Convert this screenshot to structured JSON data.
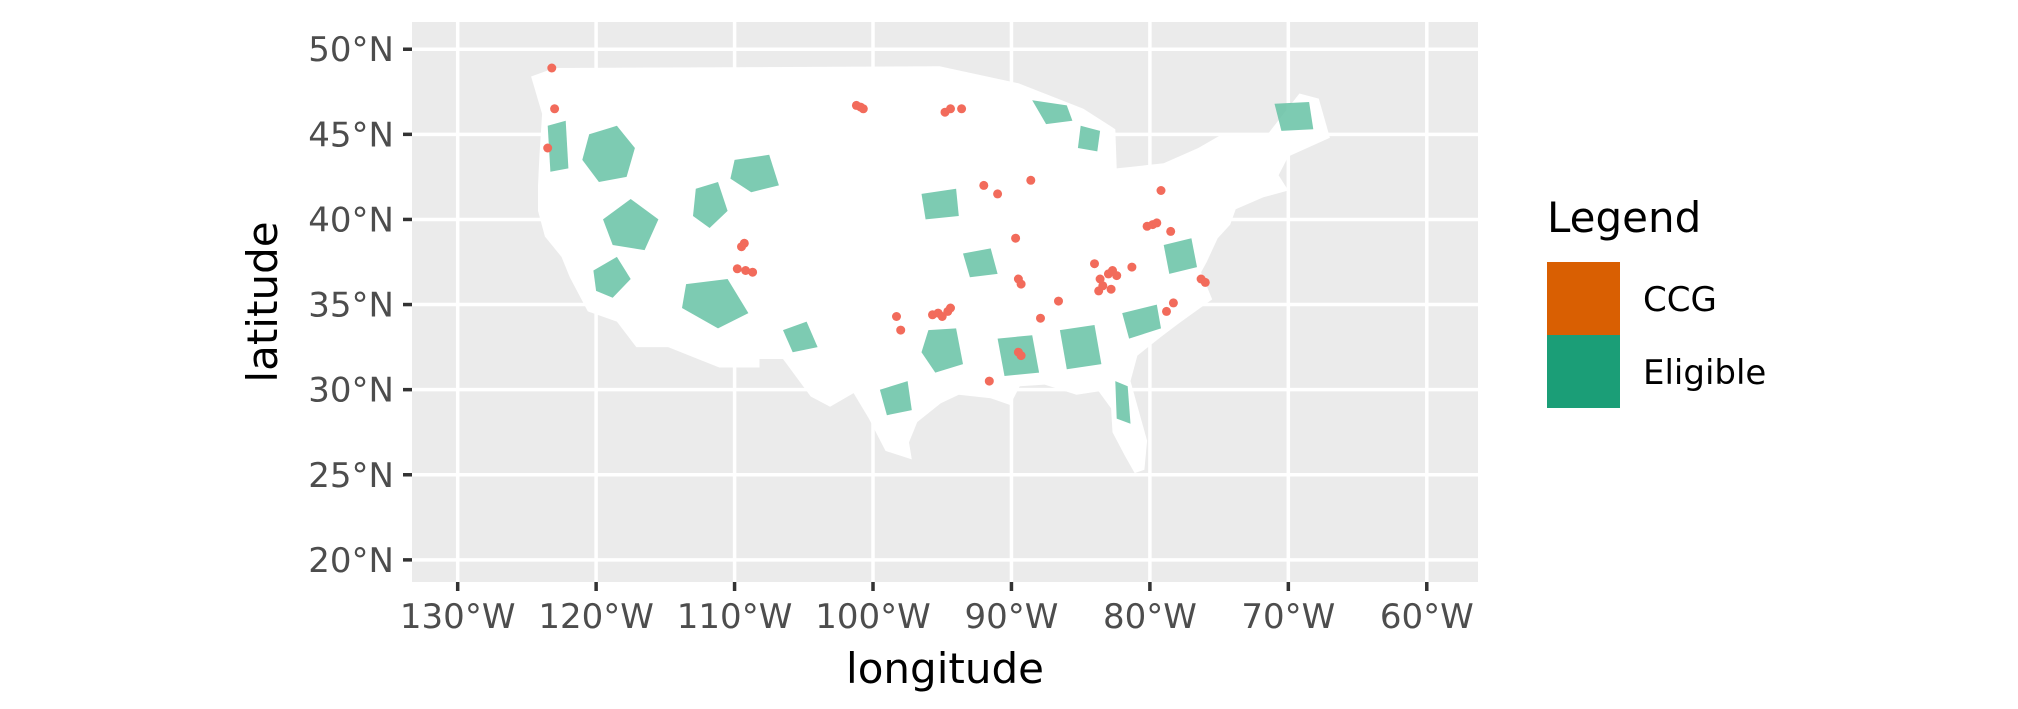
{
  "axes": {
    "x_title": "longitude",
    "y_title": "latitude",
    "x_ticks": [
      {
        "value": -130,
        "label": "130°W"
      },
      {
        "value": -120,
        "label": "120°W"
      },
      {
        "value": -110,
        "label": "110°W"
      },
      {
        "value": -100,
        "label": "100°W"
      },
      {
        "value": -90,
        "label": "90°W"
      },
      {
        "value": -80,
        "label": "80°W"
      },
      {
        "value": -70,
        "label": "70°W"
      },
      {
        "value": -60,
        "label": "60°W"
      }
    ],
    "y_ticks": [
      {
        "value": 20,
        "label": "20°N"
      },
      {
        "value": 25,
        "label": "25°N"
      },
      {
        "value": 30,
        "label": "30°N"
      },
      {
        "value": 35,
        "label": "35°N"
      },
      {
        "value": 40,
        "label": "40°N"
      },
      {
        "value": 45,
        "label": "45°N"
      },
      {
        "value": 50,
        "label": "50°N"
      }
    ],
    "xlim": [
      -133.3,
      -56.3
    ],
    "ylim": [
      18.7,
      51.6
    ],
    "grid": true
  },
  "legend": {
    "title": "Legend",
    "placement": "right",
    "items": [
      {
        "label": "CCG",
        "color": "#d95f02"
      },
      {
        "label": "Eligible",
        "color": "#1b9e77"
      }
    ]
  },
  "colors": {
    "panel_background": "#ebebeb",
    "grid": "#ffffff",
    "land": "#ffffff",
    "eligible_fill": "#66c2a5",
    "ccg_point": "#f26b5b"
  },
  "map": {
    "outline": [
      [
        -124.7,
        48.4
      ],
      [
        -123.0,
        48.9
      ],
      [
        -95.2,
        49.0
      ],
      [
        -89.5,
        48.0
      ],
      [
        -84.8,
        46.5
      ],
      [
        -82.5,
        45.3
      ],
      [
        -82.4,
        43.0
      ],
      [
        -79.0,
        43.3
      ],
      [
        -76.5,
        44.2
      ],
      [
        -75.0,
        44.9
      ],
      [
        -71.5,
        45.0
      ],
      [
        -69.2,
        47.4
      ],
      [
        -67.8,
        47.1
      ],
      [
        -67.0,
        44.8
      ],
      [
        -70.0,
        43.7
      ],
      [
        -70.7,
        42.6
      ],
      [
        -70.0,
        41.7
      ],
      [
        -71.8,
        41.3
      ],
      [
        -73.8,
        40.6
      ],
      [
        -74.2,
        39.7
      ],
      [
        -75.1,
        38.9
      ],
      [
        -75.9,
        37.5
      ],
      [
        -76.3,
        36.9
      ],
      [
        -75.5,
        35.3
      ],
      [
        -77.9,
        33.9
      ],
      [
        -79.2,
        33.1
      ],
      [
        -80.9,
        32.0
      ],
      [
        -81.4,
        30.5
      ],
      [
        -80.2,
        27.0
      ],
      [
        -80.4,
        25.3
      ],
      [
        -81.1,
        25.1
      ],
      [
        -81.8,
        26.1
      ],
      [
        -82.7,
        27.5
      ],
      [
        -82.8,
        28.9
      ],
      [
        -83.7,
        29.9
      ],
      [
        -85.3,
        29.7
      ],
      [
        -87.6,
        30.3
      ],
      [
        -89.4,
        30.2
      ],
      [
        -90.1,
        29.1
      ],
      [
        -91.5,
        29.5
      ],
      [
        -93.8,
        29.7
      ],
      [
        -95.1,
        29.2
      ],
      [
        -96.8,
        28.1
      ],
      [
        -97.4,
        26.9
      ],
      [
        -97.2,
        25.9
      ],
      [
        -99.1,
        26.4
      ],
      [
        -100.3,
        28.3
      ],
      [
        -101.4,
        29.8
      ],
      [
        -103.1,
        29.0
      ],
      [
        -104.5,
        29.6
      ],
      [
        -106.5,
        31.8
      ],
      [
        -108.2,
        31.8
      ],
      [
        -108.2,
        31.3
      ],
      [
        -111.1,
        31.3
      ],
      [
        -114.8,
        32.5
      ],
      [
        -117.1,
        32.5
      ],
      [
        -118.5,
        34.0
      ],
      [
        -120.6,
        34.6
      ],
      [
        -121.9,
        36.6
      ],
      [
        -122.5,
        37.8
      ],
      [
        -123.7,
        39.0
      ],
      [
        -124.2,
        40.5
      ],
      [
        -124.2,
        42.0
      ],
      [
        -124.1,
        43.7
      ],
      [
        -123.9,
        46.2
      ],
      [
        -124.7,
        48.4
      ]
    ],
    "eligible_regions": [
      [
        [
          -120.5,
          45.0
        ],
        [
          -118.5,
          45.5
        ],
        [
          -117.2,
          44.2
        ],
        [
          -117.8,
          42.5
        ],
        [
          -119.8,
          42.2
        ],
        [
          -121.0,
          43.5
        ]
      ],
      [
        [
          -119.5,
          40.0
        ],
        [
          -117.5,
          41.2
        ],
        [
          -115.5,
          40.0
        ],
        [
          -116.5,
          38.2
        ],
        [
          -118.8,
          38.5
        ]
      ],
      [
        [
          -112.8,
          41.8
        ],
        [
          -111.2,
          42.2
        ],
        [
          -110.5,
          40.5
        ],
        [
          -111.8,
          39.5
        ],
        [
          -113.0,
          40.2
        ]
      ],
      [
        [
          -110.0,
          43.5
        ],
        [
          -107.5,
          43.8
        ],
        [
          -106.8,
          42.0
        ],
        [
          -108.8,
          41.6
        ],
        [
          -110.3,
          42.4
        ]
      ],
      [
        [
          -113.5,
          36.2
        ],
        [
          -110.5,
          36.5
        ],
        [
          -109.0,
          34.5
        ],
        [
          -111.2,
          33.6
        ],
        [
          -113.8,
          34.8
        ]
      ],
      [
        [
          -120.2,
          37.0
        ],
        [
          -118.5,
          37.8
        ],
        [
          -117.5,
          36.5
        ],
        [
          -118.8,
          35.4
        ],
        [
          -120.0,
          35.8
        ]
      ],
      [
        [
          -106.5,
          33.5
        ],
        [
          -104.8,
          34.0
        ],
        [
          -104.0,
          32.5
        ],
        [
          -105.8,
          32.2
        ]
      ],
      [
        [
          -88.5,
          47.0
        ],
        [
          -86.0,
          46.7
        ],
        [
          -85.6,
          45.8
        ],
        [
          -87.5,
          45.6
        ]
      ],
      [
        [
          -85.0,
          45.5
        ],
        [
          -83.6,
          45.2
        ],
        [
          -83.8,
          44.0
        ],
        [
          -85.2,
          44.2
        ]
      ],
      [
        [
          -96.0,
          33.5
        ],
        [
          -94.0,
          33.6
        ],
        [
          -93.5,
          31.5
        ],
        [
          -95.5,
          31.0
        ],
        [
          -96.5,
          32.2
        ]
      ],
      [
        [
          -91.0,
          33.0
        ],
        [
          -88.5,
          33.2
        ],
        [
          -88.0,
          31.0
        ],
        [
          -90.5,
          30.8
        ]
      ],
      [
        [
          -86.5,
          33.5
        ],
        [
          -84.0,
          33.8
        ],
        [
          -83.5,
          31.5
        ],
        [
          -86.0,
          31.2
        ]
      ],
      [
        [
          -82.0,
          34.5
        ],
        [
          -79.5,
          35.0
        ],
        [
          -79.2,
          33.6
        ],
        [
          -81.5,
          33.0
        ]
      ],
      [
        [
          -79.0,
          38.5
        ],
        [
          -77.0,
          38.9
        ],
        [
          -76.6,
          37.2
        ],
        [
          -78.6,
          36.8
        ]
      ],
      [
        [
          -82.5,
          30.5
        ],
        [
          -81.6,
          30.2
        ],
        [
          -81.4,
          28.0
        ],
        [
          -82.4,
          28.3
        ]
      ],
      [
        [
          -71.0,
          46.8
        ],
        [
          -68.5,
          46.9
        ],
        [
          -68.2,
          45.3
        ],
        [
          -70.5,
          45.2
        ]
      ],
      [
        [
          -96.5,
          41.5
        ],
        [
          -94.0,
          41.8
        ],
        [
          -93.8,
          40.2
        ],
        [
          -96.2,
          40.0
        ]
      ],
      [
        [
          -99.5,
          30.0
        ],
        [
          -97.5,
          30.5
        ],
        [
          -97.2,
          28.8
        ],
        [
          -99.0,
          28.5
        ]
      ],
      [
        [
          -93.5,
          38.0
        ],
        [
          -91.5,
          38.3
        ],
        [
          -91.0,
          36.8
        ],
        [
          -93.0,
          36.6
        ]
      ],
      [
        [
          -123.5,
          45.5
        ],
        [
          -122.2,
          45.8
        ],
        [
          -122.0,
          43.0
        ],
        [
          -123.3,
          42.8
        ]
      ]
    ],
    "ccg_points": [
      [
        -123.2,
        48.9
      ],
      [
        -123.0,
        46.5
      ],
      [
        -123.5,
        44.2
      ],
      [
        -101.2,
        46.7
      ],
      [
        -100.9,
        46.6
      ],
      [
        -100.7,
        46.5
      ],
      [
        -94.8,
        46.3
      ],
      [
        -94.4,
        46.5
      ],
      [
        -93.6,
        46.5
      ],
      [
        -92.0,
        42.0
      ],
      [
        -91.0,
        41.5
      ],
      [
        -88.6,
        42.3
      ],
      [
        -109.5,
        38.4
      ],
      [
        -109.3,
        38.6
      ],
      [
        -109.2,
        37.0
      ],
      [
        -108.7,
        36.9
      ],
      [
        -109.8,
        37.1
      ],
      [
        -89.7,
        38.9
      ],
      [
        -89.5,
        36.5
      ],
      [
        -89.3,
        36.2
      ],
      [
        -86.6,
        35.2
      ],
      [
        -87.9,
        34.2
      ],
      [
        -98.3,
        34.3
      ],
      [
        -98.0,
        33.5
      ],
      [
        -95.7,
        34.4
      ],
      [
        -95.3,
        34.5
      ],
      [
        -95.0,
        34.3
      ],
      [
        -94.6,
        34.6
      ],
      [
        -94.4,
        34.8
      ],
      [
        -89.5,
        32.2
      ],
      [
        -89.3,
        32.0
      ],
      [
        -91.6,
        30.5
      ],
      [
        -84.0,
        37.4
      ],
      [
        -83.6,
        36.5
      ],
      [
        -83.4,
        36.1
      ],
      [
        -83.0,
        36.8
      ],
      [
        -82.7,
        37.0
      ],
      [
        -82.4,
        36.7
      ],
      [
        -83.7,
        35.8
      ],
      [
        -82.8,
        35.9
      ],
      [
        -81.3,
        37.2
      ],
      [
        -80.2,
        39.6
      ],
      [
        -79.8,
        39.7
      ],
      [
        -79.5,
        39.8
      ],
      [
        -79.2,
        41.7
      ],
      [
        -78.5,
        39.3
      ],
      [
        -76.3,
        36.5
      ],
      [
        -76.0,
        36.3
      ],
      [
        -78.8,
        34.6
      ],
      [
        -78.3,
        35.1
      ]
    ]
  }
}
